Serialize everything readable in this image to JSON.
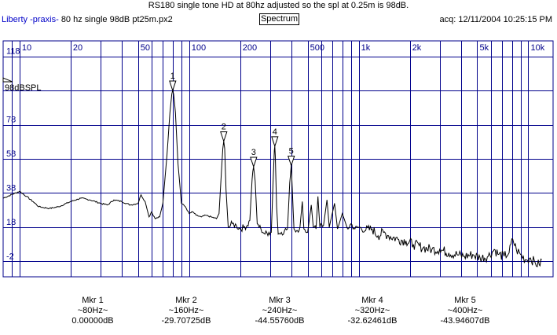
{
  "header": {
    "title": "RS180 single tone HD at 80hz adjusted so the spl at 0.25m is 98dB.",
    "app_name": "Liberty -praxis-",
    "file_name": "80 hz single 98dB pt25m.px2",
    "view_button_label": "Spectrum",
    "acquired": "acq: 12/11/2004 10:25:15 PM"
  },
  "chart_data": {
    "type": "line",
    "x_scale": "log",
    "xlim": [
      8,
      14000
    ],
    "ylim": [
      -11,
      127
    ],
    "grid": true,
    "x_tick_labels": [
      {
        "freq": 10,
        "label": "10"
      },
      {
        "freq": 20,
        "label": "20"
      },
      {
        "freq": 50,
        "label": "50"
      },
      {
        "freq": 100,
        "label": "100"
      },
      {
        "freq": 200,
        "label": "200"
      },
      {
        "freq": 500,
        "label": "500"
      },
      {
        "freq": 1000,
        "label": "1k"
      },
      {
        "freq": 2000,
        "label": "2k"
      },
      {
        "freq": 5000,
        "label": "5k"
      },
      {
        "freq": 10000,
        "label": "10k"
      }
    ],
    "y_tick_labels": [
      {
        "value": 118,
        "label": "118"
      },
      {
        "value": 78,
        "label": "78"
      },
      {
        "value": 58,
        "label": "58"
      },
      {
        "value": 38,
        "label": "38"
      },
      {
        "value": 18,
        "label": "18"
      },
      {
        "value": -2,
        "label": "-2"
      }
    ],
    "y_gridlines": [
      118,
      98,
      78,
      58,
      38,
      18,
      -2
    ],
    "reference_label": "98dBSPL",
    "reference_value": 98,
    "markers": [
      {
        "id": "1",
        "freq": 80,
        "level": 98
      },
      {
        "id": "2",
        "freq": 160,
        "level": 68.3
      },
      {
        "id": "3",
        "freq": 240,
        "level": 53.4
      },
      {
        "id": "4",
        "freq": 320,
        "level": 65.4
      },
      {
        "id": "5",
        "freq": 400,
        "level": 54.1
      }
    ],
    "series": [
      {
        "points": [
          [
            8,
            35
          ],
          [
            10,
            39
          ],
          [
            11,
            36
          ],
          [
            12,
            33
          ],
          [
            13,
            30
          ],
          [
            15,
            29
          ],
          [
            17,
            30
          ],
          [
            20,
            33
          ],
          [
            23,
            35
          ],
          [
            26,
            34
          ],
          [
            30,
            32
          ],
          [
            33,
            31
          ],
          [
            36,
            34
          ],
          [
            40,
            33
          ],
          [
            45,
            31
          ],
          [
            50,
            32
          ],
          [
            52,
            37
          ],
          [
            55,
            33
          ],
          [
            58,
            24
          ],
          [
            60,
            27
          ],
          [
            63,
            23
          ],
          [
            67,
            24
          ],
          [
            70,
            32
          ],
          [
            74,
            60
          ],
          [
            77,
            85
          ],
          [
            79,
            96
          ],
          [
            80,
            98
          ],
          [
            81,
            96
          ],
          [
            83,
            85
          ],
          [
            86,
            55
          ],
          [
            90,
            32
          ],
          [
            95,
            30
          ],
          [
            100,
            26
          ],
          [
            105,
            27
          ],
          [
            110,
            25
          ],
          [
            118,
            24
          ],
          [
            125,
            25
          ],
          [
            135,
            24
          ],
          [
            145,
            23
          ],
          [
            150,
            26
          ],
          [
            155,
            50
          ],
          [
            158,
            64
          ],
          [
            160,
            68.3
          ],
          [
            162,
            64
          ],
          [
            165,
            40
          ],
          [
            170,
            18
          ],
          [
            180,
            20
          ],
          [
            190,
            19
          ],
          [
            200,
            17
          ],
          [
            210,
            18
          ],
          [
            220,
            19
          ],
          [
            228,
            22
          ],
          [
            235,
            46
          ],
          [
            240,
            53.4
          ],
          [
            245,
            45
          ],
          [
            252,
            20
          ],
          [
            265,
            17
          ],
          [
            280,
            14
          ],
          [
            295,
            15
          ],
          [
            305,
            15
          ],
          [
            312,
            42
          ],
          [
            318,
            63
          ],
          [
            320,
            65.4
          ],
          [
            322,
            60
          ],
          [
            328,
            30
          ],
          [
            335,
            14
          ],
          [
            350,
            15
          ],
          [
            365,
            16
          ],
          [
            380,
            17
          ],
          [
            392,
            44
          ],
          [
            400,
            54.1
          ],
          [
            406,
            40
          ],
          [
            415,
            17
          ],
          [
            430,
            16
          ],
          [
            450,
            18
          ],
          [
            465,
            33
          ],
          [
            475,
            17
          ],
          [
            500,
            15
          ],
          [
            525,
            31
          ],
          [
            540,
            18
          ],
          [
            560,
            17
          ],
          [
            575,
            36
          ],
          [
            590,
            18
          ],
          [
            620,
            19
          ],
          [
            650,
            34
          ],
          [
            670,
            18
          ],
          [
            720,
            32
          ],
          [
            750,
            17
          ],
          [
            800,
            26
          ],
          [
            860,
            17
          ],
          [
            900,
            20
          ],
          [
            950,
            17
          ],
          [
            1000,
            18
          ],
          [
            1100,
            16
          ],
          [
            1200,
            17
          ],
          [
            1300,
            13
          ],
          [
            1400,
            15
          ],
          [
            1500,
            13
          ],
          [
            1700,
            11
          ],
          [
            1900,
            10
          ],
          [
            2100,
            8
          ],
          [
            2400,
            6
          ],
          [
            2700,
            5
          ],
          [
            3000,
            5
          ],
          [
            3400,
            3
          ],
          [
            3800,
            2
          ],
          [
            4200,
            1
          ],
          [
            4700,
            2
          ],
          [
            5200,
            0
          ],
          [
            5800,
            1
          ],
          [
            6300,
            5
          ],
          [
            6700,
            2
          ],
          [
            7200,
            1
          ],
          [
            7700,
            3
          ],
          [
            8100,
            11
          ],
          [
            8500,
            5
          ],
          [
            9000,
            2
          ],
          [
            9600,
            -1
          ],
          [
            10300,
            0
          ],
          [
            11000,
            -3
          ],
          [
            11600,
            -4
          ],
          [
            12000,
            -1
          ]
        ]
      }
    ]
  },
  "marker_readouts": [
    {
      "label": "Mkr 1",
      "freq": "~80Hz~",
      "level": "0.00000dB"
    },
    {
      "label": "Mkr 2",
      "freq": "~160Hz~",
      "level": "-29.70725dB"
    },
    {
      "label": "Mkr 3",
      "freq": "~240Hz~",
      "level": "-44.55760dB"
    },
    {
      "label": "Mkr 4",
      "freq": "~320Hz~",
      "level": "-32.62461dB"
    },
    {
      "label": "Mkr 5",
      "freq": "~400Hz~",
      "level": "-43.94607dB"
    }
  ],
  "colors": {
    "grid": "#00008b",
    "trace": "#000000",
    "header_link": "#0000c8"
  }
}
